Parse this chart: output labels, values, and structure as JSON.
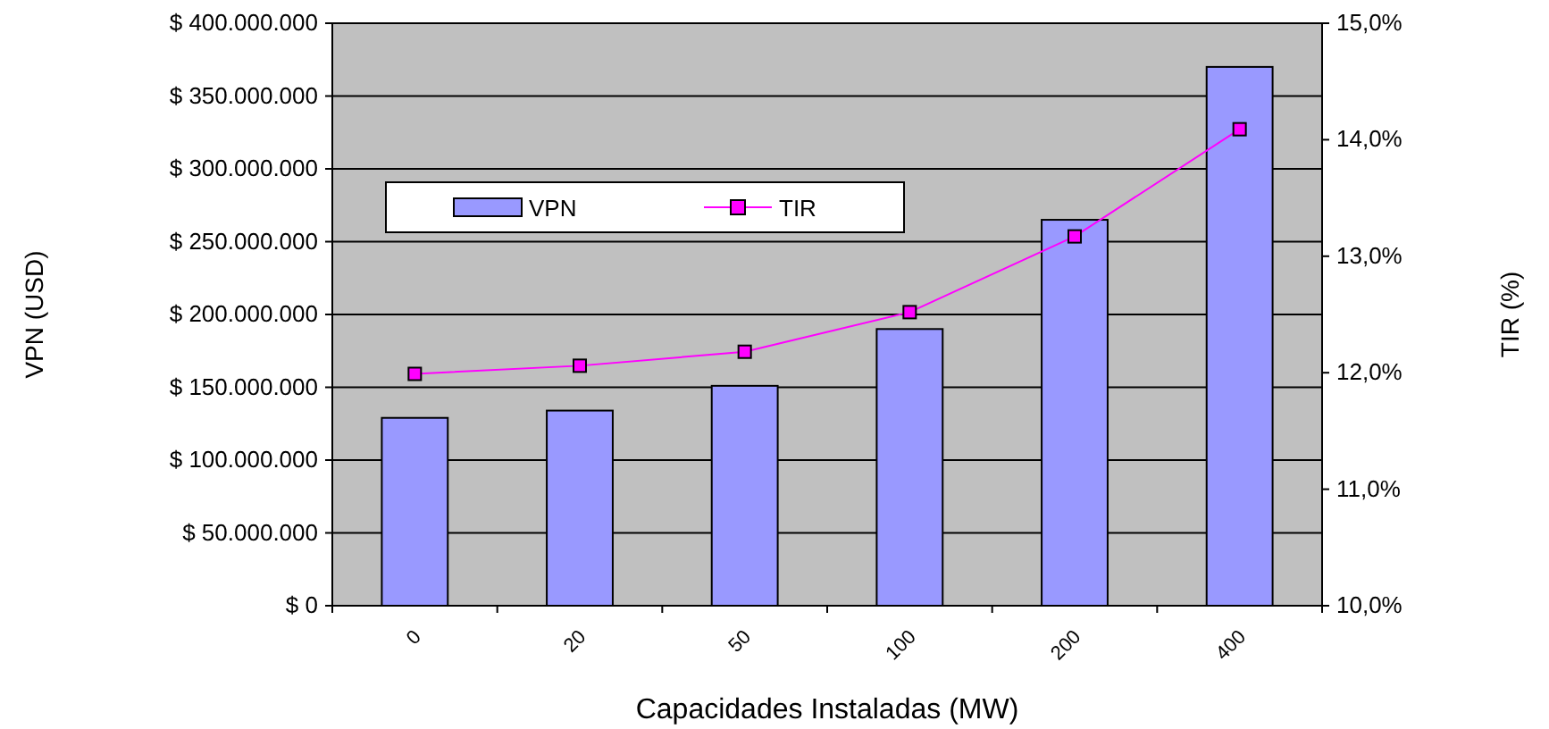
{
  "chart_data": {
    "type": "bar",
    "xlabel": "Capacidades Instaladas (MW)",
    "ylabel": "VPN (USD)",
    "y2label": "TIR (%)",
    "categories": [
      "0",
      "20",
      "50",
      "100",
      "200",
      "400"
    ],
    "series": [
      {
        "name": "VPN",
        "color": "#9999ff",
        "values": [
          129000000,
          134000000,
          151000000,
          190000000,
          265000000,
          370000000
        ]
      },
      {
        "name": "TIR",
        "type": "line",
        "axis": "y2",
        "color": "#ff00ff",
        "marker": "square",
        "values": [
          11.99,
          12.06,
          12.18,
          12.52,
          13.17,
          14.09
        ]
      }
    ],
    "ylim": [
      0,
      400000000
    ],
    "yticks": [
      {
        "value": 0,
        "label": "$ 0"
      },
      {
        "value": 50000000,
        "label": "$ 50.000.000"
      },
      {
        "value": 100000000,
        "label": "$ 100.000.000"
      },
      {
        "value": 150000000,
        "label": "$ 150.000.000"
      },
      {
        "value": 200000000,
        "label": "$ 200.000.000"
      },
      {
        "value": 250000000,
        "label": "$ 250.000.000"
      },
      {
        "value": 300000000,
        "label": "$ 300.000.000"
      },
      {
        "value": 350000000,
        "label": "$ 350.000.000"
      },
      {
        "value": 400000000,
        "label": "$ 400.000.000"
      }
    ],
    "y2lim": [
      10,
      15
    ],
    "y2ticks": [
      {
        "value": 10,
        "label": "10,0%"
      },
      {
        "value": 11,
        "label": "11,0%"
      },
      {
        "value": 12,
        "label": "12,0%"
      },
      {
        "value": 13,
        "label": "13,0%"
      },
      {
        "value": 14,
        "label": "14,0%"
      },
      {
        "value": 15,
        "label": "15,0%"
      }
    ],
    "grid": "y",
    "legend": "top left"
  }
}
